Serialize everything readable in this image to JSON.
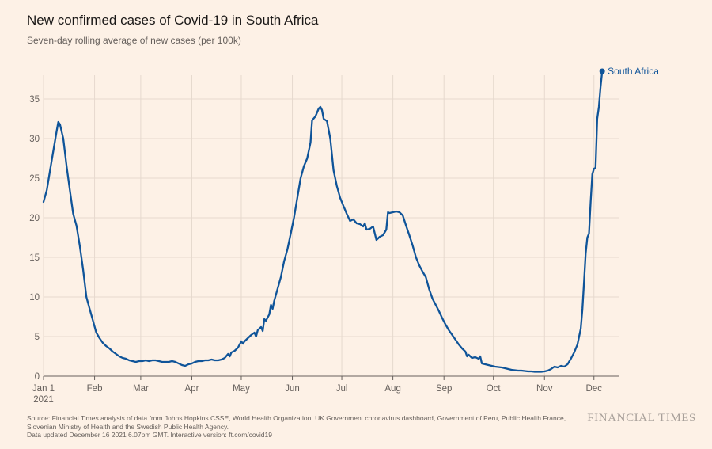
{
  "title": "New confirmed cases of Covid-19 in South Africa",
  "subtitle": "Seven-day rolling average of new cases (per 100k)",
  "footer": {
    "line1": "Source: Financial Times analysis of data from Johns Hopkins CSSE, World Health Organization, UK Government coronavirus dashboard, Government of Peru, Public Health France,",
    "line2": "Slovenian Ministry of Health and the Swedish Public Health Agency.",
    "line3": "Data updated December 16 2021 6.07pm GMT. Interactive version: ft.com/covid19"
  },
  "brand": "FINANCIAL TIMES",
  "colors": {
    "series": "#0f5499",
    "grid": "#e6d9ce",
    "axis": "#66605c"
  },
  "chart_data": {
    "type": "line",
    "title": "New confirmed cases of Covid-19 in South Africa",
    "subtitle": "Seven-day rolling average of new cases (per 100k)",
    "xlabel": "",
    "ylabel": "",
    "x_unit": "day of 2021 (0 = Jan 1)",
    "xlim": [
      0,
      349
    ],
    "ylim": [
      0,
      38
    ],
    "y_ticks": [
      0,
      5,
      10,
      15,
      20,
      25,
      30,
      35
    ],
    "x_ticks": [
      {
        "day": 0,
        "label": "Jan 1",
        "sublabel": "2021"
      },
      {
        "day": 31,
        "label": "Feb"
      },
      {
        "day": 59,
        "label": "Mar"
      },
      {
        "day": 90,
        "label": "Apr"
      },
      {
        "day": 120,
        "label": "May"
      },
      {
        "day": 151,
        "label": "Jun"
      },
      {
        "day": 181,
        "label": "Jul"
      },
      {
        "day": 212,
        "label": "Aug"
      },
      {
        "day": 243,
        "label": "Sep"
      },
      {
        "day": 273,
        "label": "Oct"
      },
      {
        "day": 304,
        "label": "Nov"
      },
      {
        "day": 334,
        "label": "Dec"
      }
    ],
    "grid": true,
    "series": [
      {
        "name": "South Africa",
        "label": "South Africa",
        "points": [
          [
            0,
            22
          ],
          [
            2,
            23.5
          ],
          [
            4,
            26
          ],
          [
            6,
            28.5
          ],
          [
            8,
            31
          ],
          [
            9,
            32.1
          ],
          [
            10,
            31.8
          ],
          [
            12,
            30
          ],
          [
            14,
            26.5
          ],
          [
            16,
            23.5
          ],
          [
            18,
            20.5
          ],
          [
            20,
            19
          ],
          [
            22,
            16.5
          ],
          [
            24,
            13.5
          ],
          [
            26,
            10
          ],
          [
            28,
            8.5
          ],
          [
            30,
            7
          ],
          [
            32,
            5.5
          ],
          [
            34,
            4.8
          ],
          [
            36,
            4.2
          ],
          [
            38,
            3.8
          ],
          [
            40,
            3.5
          ],
          [
            42,
            3.1
          ],
          [
            44,
            2.8
          ],
          [
            46,
            2.5
          ],
          [
            48,
            2.3
          ],
          [
            50,
            2.2
          ],
          [
            52,
            2.0
          ],
          [
            54,
            1.9
          ],
          [
            56,
            1.8
          ],
          [
            58,
            1.9
          ],
          [
            60,
            1.9
          ],
          [
            62,
            2.0
          ],
          [
            64,
            1.9
          ],
          [
            66,
            2.0
          ],
          [
            68,
            2.0
          ],
          [
            70,
            1.9
          ],
          [
            72,
            1.8
          ],
          [
            74,
            1.8
          ],
          [
            76,
            1.8
          ],
          [
            78,
            1.9
          ],
          [
            80,
            1.8
          ],
          [
            82,
            1.6
          ],
          [
            84,
            1.4
          ],
          [
            86,
            1.3
          ],
          [
            88,
            1.5
          ],
          [
            90,
            1.6
          ],
          [
            92,
            1.8
          ],
          [
            94,
            1.9
          ],
          [
            96,
            1.9
          ],
          [
            98,
            2.0
          ],
          [
            100,
            2.0
          ],
          [
            102,
            2.1
          ],
          [
            104,
            2.0
          ],
          [
            106,
            2.0
          ],
          [
            108,
            2.1
          ],
          [
            110,
            2.3
          ],
          [
            112,
            2.8
          ],
          [
            113,
            2.5
          ],
          [
            114,
            3.0
          ],
          [
            116,
            3.2
          ],
          [
            118,
            3.6
          ],
          [
            120,
            4.4
          ],
          [
            121,
            4.1
          ],
          [
            122,
            4.4
          ],
          [
            124,
            4.8
          ],
          [
            126,
            5.2
          ],
          [
            128,
            5.5
          ],
          [
            129,
            5.0
          ],
          [
            130,
            5.8
          ],
          [
            132,
            6.2
          ],
          [
            133,
            5.7
          ],
          [
            134,
            7.2
          ],
          [
            135,
            7.0
          ],
          [
            137,
            7.8
          ],
          [
            138,
            9.0
          ],
          [
            139,
            8.5
          ],
          [
            140,
            9.5
          ],
          [
            142,
            11
          ],
          [
            144,
            12.5
          ],
          [
            146,
            14.5
          ],
          [
            148,
            16
          ],
          [
            150,
            18
          ],
          [
            152,
            20
          ],
          [
            154,
            22.5
          ],
          [
            156,
            25
          ],
          [
            158,
            26.5
          ],
          [
            160,
            27.5
          ],
          [
            162,
            29.5
          ],
          [
            163,
            32.3
          ],
          [
            165,
            32.8
          ],
          [
            167,
            33.8
          ],
          [
            168,
            34.0
          ],
          [
            169,
            33.6
          ],
          [
            170,
            32.5
          ],
          [
            172,
            32.2
          ],
          [
            174,
            30
          ],
          [
            176,
            26
          ],
          [
            178,
            24
          ],
          [
            180,
            22.5
          ],
          [
            182,
            21.5
          ],
          [
            184,
            20.5
          ],
          [
            186,
            19.6
          ],
          [
            188,
            19.8
          ],
          [
            190,
            19.3
          ],
          [
            192,
            19.2
          ],
          [
            194,
            18.9
          ],
          [
            195,
            19.3
          ],
          [
            196,
            18.5
          ],
          [
            198,
            18.6
          ],
          [
            200,
            18.9
          ],
          [
            202,
            17.2
          ],
          [
            204,
            17.6
          ],
          [
            206,
            17.8
          ],
          [
            208,
            18.5
          ],
          [
            209,
            20.7
          ],
          [
            210,
            20.6
          ],
          [
            212,
            20.7
          ],
          [
            214,
            20.8
          ],
          [
            216,
            20.7
          ],
          [
            218,
            20.3
          ],
          [
            220,
            19
          ],
          [
            222,
            17.8
          ],
          [
            224,
            16.5
          ],
          [
            226,
            15
          ],
          [
            228,
            14
          ],
          [
            230,
            13.2
          ],
          [
            232,
            12.5
          ],
          [
            234,
            11
          ],
          [
            236,
            9.8
          ],
          [
            238,
            9
          ],
          [
            240,
            8.2
          ],
          [
            242,
            7.3
          ],
          [
            244,
            6.5
          ],
          [
            246,
            5.8
          ],
          [
            248,
            5.2
          ],
          [
            250,
            4.6
          ],
          [
            252,
            4.0
          ],
          [
            254,
            3.5
          ],
          [
            256,
            3.1
          ],
          [
            257,
            2.5
          ],
          [
            258,
            2.7
          ],
          [
            260,
            2.3
          ],
          [
            262,
            2.4
          ],
          [
            264,
            2.2
          ],
          [
            265,
            2.5
          ],
          [
            266,
            1.6
          ],
          [
            268,
            1.5
          ],
          [
            270,
            1.4
          ],
          [
            272,
            1.3
          ],
          [
            274,
            1.2
          ],
          [
            276,
            1.15
          ],
          [
            278,
            1.1
          ],
          [
            280,
            1.0
          ],
          [
            282,
            0.9
          ],
          [
            284,
            0.8
          ],
          [
            286,
            0.75
          ],
          [
            288,
            0.7
          ],
          [
            290,
            0.7
          ],
          [
            292,
            0.65
          ],
          [
            294,
            0.6
          ],
          [
            296,
            0.6
          ],
          [
            298,
            0.55
          ],
          [
            300,
            0.55
          ],
          [
            302,
            0.55
          ],
          [
            304,
            0.6
          ],
          [
            306,
            0.7
          ],
          [
            308,
            0.9
          ],
          [
            310,
            1.2
          ],
          [
            312,
            1.1
          ],
          [
            314,
            1.3
          ],
          [
            316,
            1.2
          ],
          [
            318,
            1.5
          ],
          [
            320,
            2.2
          ],
          [
            322,
            3.0
          ],
          [
            324,
            4.0
          ],
          [
            326,
            6.0
          ],
          [
            327,
            8.5
          ],
          [
            328,
            12
          ],
          [
            329,
            15.5
          ],
          [
            330,
            17.5
          ],
          [
            331,
            18
          ],
          [
            332,
            22
          ],
          [
            333,
            25.5
          ],
          [
            334,
            26.2
          ],
          [
            335,
            26.3
          ],
          [
            336,
            32.5
          ],
          [
            337,
            34
          ],
          [
            338,
            36.5
          ],
          [
            339,
            38.5
          ]
        ]
      }
    ]
  }
}
